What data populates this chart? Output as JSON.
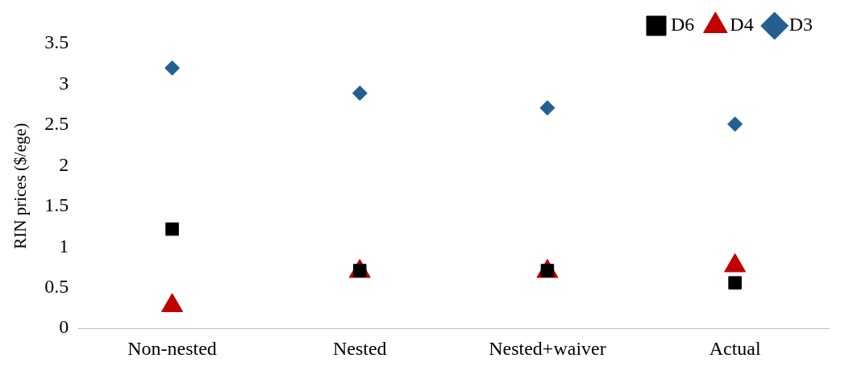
{
  "chart_data": {
    "type": "scatter",
    "ylabel": "RIN prices ($/ege)",
    "categories": [
      "Non-nested",
      "Nested",
      "Nested+waiver",
      "Actual"
    ],
    "series": [
      {
        "name": "D6",
        "color": "#000000",
        "marker": "square",
        "values": [
          1.22,
          0.71,
          0.71,
          0.56
        ]
      },
      {
        "name": "D4",
        "color": "#c00000",
        "marker": "triangle",
        "values": [
          0.28,
          0.7,
          0.7,
          0.77
        ]
      },
      {
        "name": "D3",
        "color": "#255e91",
        "marker": "diamond",
        "values": [
          3.2,
          2.89,
          2.71,
          2.51
        ]
      }
    ],
    "ylim": [
      0,
      3.5
    ],
    "yticks": [
      0,
      0.5,
      1,
      1.5,
      2,
      2.5,
      3,
      3.5
    ],
    "grid": false,
    "legend": "top right"
  }
}
